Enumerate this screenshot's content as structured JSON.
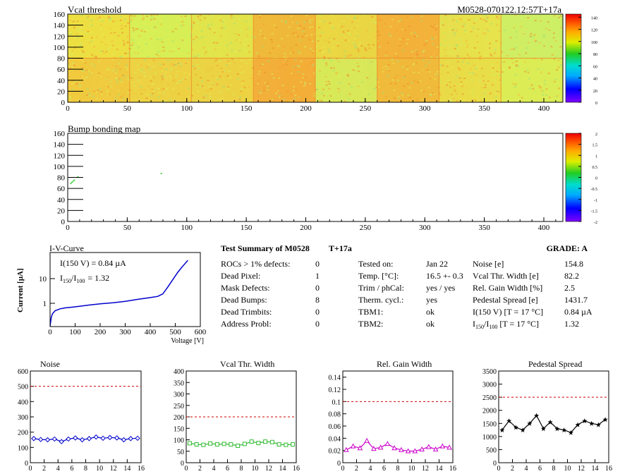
{
  "vcal_map": {
    "title": "Vcal threshold",
    "module_label": "M0528-070122.12:57T+17a",
    "x_ticks": [
      "0",
      "50",
      "100",
      "150",
      "200",
      "250",
      "300",
      "350",
      "400"
    ],
    "y_ticks": [
      "0",
      "20",
      "40",
      "60",
      "80",
      "100",
      "120",
      "140",
      "160"
    ],
    "xlim": [
      0,
      416
    ],
    "ylim": [
      0,
      160
    ],
    "palette_ticks": [
      "0",
      "20",
      "40",
      "60",
      "80",
      "100",
      "120",
      "140"
    ],
    "palette_range": [
      0,
      145
    ]
  },
  "bump_map": {
    "title": "Bump bonding map",
    "x_ticks": [
      "0",
      "50",
      "100",
      "150",
      "200",
      "250",
      "300",
      "350",
      "400"
    ],
    "y_ticks": [
      "0",
      "20",
      "40",
      "60",
      "80",
      "100",
      "120",
      "140",
      "160"
    ],
    "xlim": [
      0,
      416
    ],
    "ylim": [
      0,
      160
    ],
    "palette_ticks": [
      "-2",
      "-1.5",
      "-1",
      "-0.5",
      "0",
      "0.5",
      "1",
      "1.5",
      "2"
    ],
    "palette_range": [
      -2,
      2
    ]
  },
  "iv": {
    "title": "I-V-Curve",
    "ylabel": "Current [µA]",
    "xlabel": "Voltage [V]",
    "legend_i150": "I(150 V) = 0.84 µA",
    "legend_ratio_prefix": "I",
    "legend_ratio_sub1": "150",
    "legend_ratio_mid": "/I",
    "legend_ratio_sub2": "100",
    "legend_ratio_value": "=  1.32",
    "x_ticks": [
      "0",
      "100",
      "200",
      "300",
      "400",
      "500",
      "600"
    ],
    "y_ticks": [
      "1",
      "10"
    ]
  },
  "summary": {
    "title": "Test Summary of M0528",
    "tag": "T+17a",
    "grade_label": "GRADE:  A",
    "col1": [
      {
        "label": "ROCs > 1% defects:",
        "value": "0"
      },
      {
        "label": "Dead Pixel:",
        "value": "1"
      },
      {
        "label": "Mask Defects:",
        "value": "0"
      },
      {
        "label": "Dead Bumps:",
        "value": "8"
      },
      {
        "label": "Dead Trimbits:",
        "value": "0"
      },
      {
        "label": "Address Probl:",
        "value": "0"
      }
    ],
    "col2": [
      {
        "label": "Tested on:",
        "value": "Jan 22"
      },
      {
        "label": "Temp. [°C]:",
        "value": "16.5 +- 0.3"
      },
      {
        "label": "Trim / phCal:",
        "value": "yes / yes"
      },
      {
        "label": "Therm. cycl.:",
        "value": "yes"
      },
      {
        "label": "TBM1:",
        "value": "ok"
      },
      {
        "label": "TBM2:",
        "value": "ok"
      }
    ],
    "col3": [
      {
        "label": "Noise [e]",
        "value": "154.8"
      },
      {
        "label": "Vcal Thr. Width [e]",
        "value": "82.2"
      },
      {
        "label": "Rel. Gain Width [%]",
        "value": "2.5"
      },
      {
        "label": "Pedestal Spread [e]",
        "value": "1431.7"
      },
      {
        "label": "I(150 V) [T = 17 °C]",
        "value": "0.84 µA"
      },
      {
        "label": "I150/I100  [T = 17 °C]",
        "value": "1.32"
      }
    ],
    "ratio_row": {
      "prefix": "I",
      "sub1": "150",
      "mid": "/I",
      "sub2": "100",
      "rest": "  [T = 17 °C]"
    }
  },
  "chart_data": [
    {
      "type": "line",
      "title": "Noise",
      "x": [
        0,
        1,
        2,
        3,
        4,
        5,
        6,
        7,
        8,
        9,
        10,
        11,
        12,
        13,
        14,
        15
      ],
      "values": [
        158,
        152,
        150,
        155,
        138,
        155,
        162,
        150,
        158,
        168,
        160,
        165,
        162,
        150,
        158,
        160
      ],
      "ylim": [
        0,
        600
      ],
      "xlim": [
        0,
        16
      ],
      "threshold": 500,
      "y_ticks": [
        "0",
        "100",
        "200",
        "300",
        "400",
        "500",
        "600"
      ],
      "x_ticks": [
        "0",
        "2",
        "4",
        "6",
        "8",
        "10",
        "12",
        "14",
        "16"
      ],
      "color": "#0000cc",
      "marker": "diamond"
    },
    {
      "type": "line",
      "title": "Vcal Thr. Width",
      "x": [
        0,
        1,
        2,
        3,
        4,
        5,
        6,
        7,
        8,
        9,
        10,
        11,
        12,
        13,
        14,
        15
      ],
      "values": [
        85,
        80,
        78,
        84,
        80,
        82,
        80,
        74,
        82,
        92,
        86,
        92,
        90,
        80,
        78,
        80
      ],
      "ylim": [
        0,
        400
      ],
      "xlim": [
        0,
        16
      ],
      "threshold": 200,
      "y_ticks": [
        "0",
        "50",
        "100",
        "150",
        "200",
        "250",
        "300",
        "350",
        "400"
      ],
      "x_ticks": [
        "0",
        "2",
        "4",
        "6",
        "8",
        "10",
        "12",
        "14",
        "16"
      ],
      "color": "#33bb33",
      "marker": "square"
    },
    {
      "type": "line",
      "title": "Rel. Gain Width",
      "x": [
        0,
        1,
        2,
        3,
        4,
        5,
        6,
        7,
        8,
        9,
        10,
        11,
        12,
        13,
        14,
        15
      ],
      "values": [
        0.021,
        0.027,
        0.024,
        0.036,
        0.023,
        0.025,
        0.031,
        0.024,
        0.021,
        0.019,
        0.019,
        0.022,
        0.026,
        0.022,
        0.027,
        0.025
      ],
      "ylim": [
        0,
        0.15
      ],
      "xlim": [
        0,
        16
      ],
      "threshold": 0.1,
      "y_ticks": [
        "0",
        "0.02",
        "0.04",
        "0.06",
        "0.08",
        "0.1",
        "0.12",
        "0.14"
      ],
      "x_ticks": [
        "0",
        "2",
        "4",
        "6",
        "8",
        "10",
        "12",
        "14",
        "16"
      ],
      "color": "#cc00cc",
      "marker": "triangle"
    },
    {
      "type": "line",
      "title": "Pedestal Spread",
      "x": [
        0,
        1,
        2,
        3,
        4,
        5,
        6,
        7,
        8,
        9,
        10,
        11,
        12,
        13,
        14,
        15
      ],
      "values": [
        1250,
        1600,
        1350,
        1250,
        1500,
        1800,
        1300,
        1550,
        1300,
        1250,
        1150,
        1450,
        1600,
        1500,
        1450,
        1650
      ],
      "ylim": [
        0,
        3500
      ],
      "xlim": [
        0,
        16
      ],
      "threshold": 2500,
      "y_ticks": [
        "0",
        "500",
        "1000",
        "1500",
        "2000",
        "2500",
        "3000",
        "3500"
      ],
      "x_ticks": [
        "0",
        "2",
        "4",
        "6",
        "8",
        "10",
        "12",
        "14",
        "16"
      ],
      "color": "#000000",
      "marker": "star"
    }
  ]
}
